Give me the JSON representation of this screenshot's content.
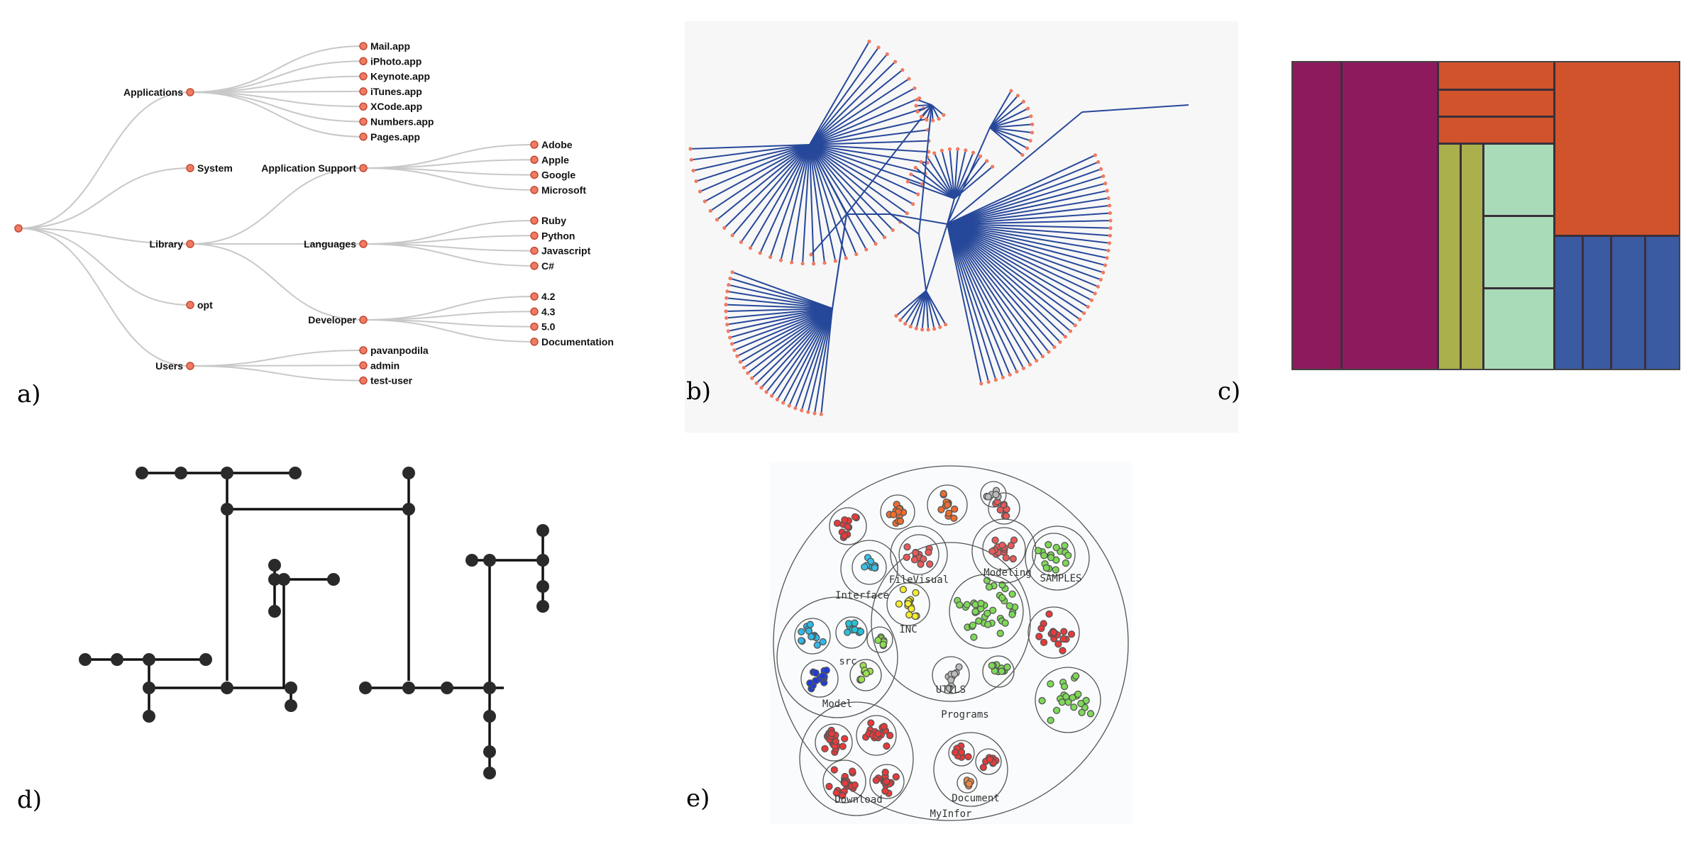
{
  "panels": {
    "a": {
      "label": "a)",
      "tree": {
        "children": [
          {
            "name": "Applications",
            "children": [
              {
                "name": "Mail.app"
              },
              {
                "name": "iPhoto.app"
              },
              {
                "name": "Keynote.app"
              },
              {
                "name": "iTunes.app"
              },
              {
                "name": "XCode.app"
              },
              {
                "name": "Numbers.app"
              },
              {
                "name": "Pages.app"
              }
            ]
          },
          {
            "name": "System"
          },
          {
            "name": "Library",
            "children": [
              {
                "name": "Application Support",
                "children": [
                  {
                    "name": "Adobe"
                  },
                  {
                    "name": "Apple"
                  },
                  {
                    "name": "Google"
                  },
                  {
                    "name": "Microsoft"
                  }
                ]
              },
              {
                "name": "Languages",
                "children": [
                  {
                    "name": "Ruby"
                  },
                  {
                    "name": "Python"
                  },
                  {
                    "name": "Javascript"
                  },
                  {
                    "name": "C#"
                  }
                ]
              },
              {
                "name": "Developer",
                "children": [
                  {
                    "name": "4.2"
                  },
                  {
                    "name": "4.3"
                  },
                  {
                    "name": "5.0"
                  },
                  {
                    "name": "Documentation"
                  }
                ]
              }
            ]
          },
          {
            "name": "opt"
          },
          {
            "name": "Users",
            "children": [
              {
                "name": "pavanpodila"
              },
              {
                "name": "admin"
              },
              {
                "name": "test-user"
              }
            ]
          }
        ]
      }
    },
    "b": {
      "label": "b)"
    },
    "c": {
      "label": "c)"
    },
    "d": {
      "label": "d)"
    },
    "e": {
      "label": "e)",
      "circle_labels": {
        "root": "MyInfor",
        "programs": "Programs",
        "model": "Model",
        "document": "Document",
        "download": "Download",
        "interface": "Interface",
        "filevisual": "FileVisual",
        "modeling": "Modeling",
        "samples": "SAMPLES",
        "utils": "UTILS",
        "inc": "INC",
        "src": "src"
      }
    }
  },
  "colors": {
    "tree_node": "#ef7b62",
    "tree_link": "#c8c8c8",
    "radial_link": "#27489a",
    "treemap_purple": "#8e1a5e",
    "treemap_orange": "#d0532b",
    "treemap_olive": "#aab04b",
    "treemap_mint": "#a9dbb8",
    "treemap_blue": "#3a5aa2"
  }
}
